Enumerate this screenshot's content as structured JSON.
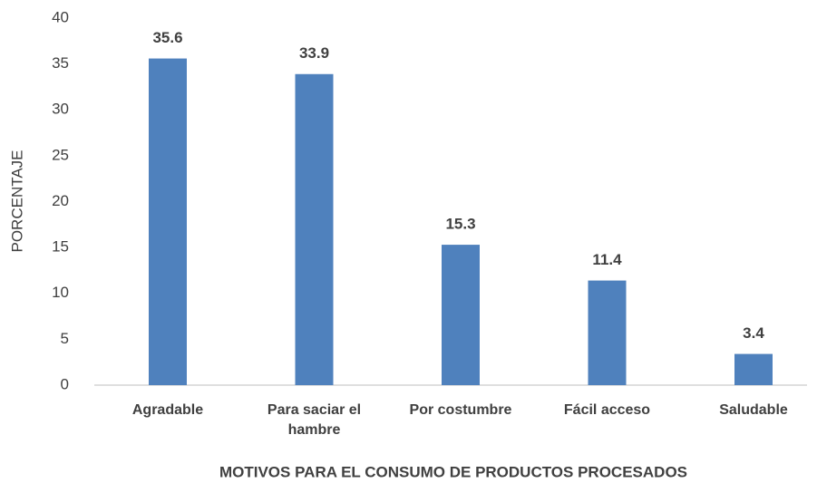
{
  "chart_data": {
    "type": "bar",
    "x_label": "MOTIVOS PARA EL CONSUMO DE PRODUCTOS PROCESADOS",
    "y_label": "PORCENTAJE",
    "categories": [
      "Agradable",
      "Para saciar el hambre",
      "Por costumbre",
      "Fácil acceso",
      "Saludable"
    ],
    "values": [
      35.6,
      33.9,
      15.3,
      11.4,
      3.4
    ],
    "color": "#4f81bd",
    "ylim": [
      0,
      40
    ],
    "yticks": [
      0,
      5,
      10,
      15,
      20,
      25,
      30,
      35,
      40
    ],
    "grid": false
  }
}
